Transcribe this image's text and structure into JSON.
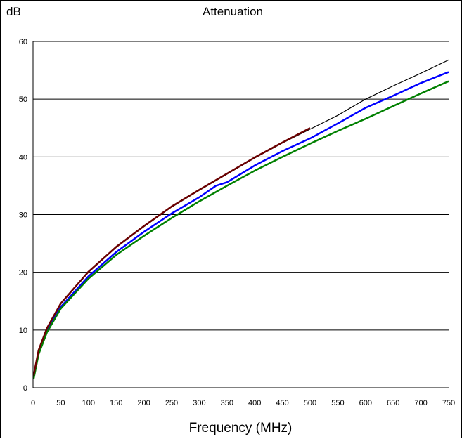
{
  "chart_data": {
    "type": "line",
    "title": "Attenuation",
    "xlabel": "Frequency (MHz)",
    "ylabel": "dB",
    "xlim": [
      0,
      750
    ],
    "ylim": [
      0,
      60
    ],
    "xticks": [
      0,
      50,
      100,
      150,
      200,
      250,
      300,
      350,
      400,
      450,
      500,
      550,
      600,
      650,
      700,
      750
    ],
    "yticks": [
      0,
      10,
      20,
      30,
      40,
      50,
      60
    ],
    "grid": "horizontal",
    "legend": "none",
    "series": [
      {
        "color": "#000000",
        "style": "thin",
        "x": [
          1,
          10,
          25,
          50,
          100,
          150,
          200,
          250,
          300,
          350,
          400,
          450,
          500,
          550,
          600,
          650,
          700,
          750
        ],
        "y": [
          2.0,
          6.4,
          10.2,
          14.5,
          20.0,
          24.3,
          27.9,
          31.3,
          34.2,
          37.0,
          39.8,
          42.4,
          44.8,
          47.2,
          50.0,
          52.3,
          54.5,
          56.8
        ]
      },
      {
        "color": "#0000ff",
        "style": "thick",
        "x": [
          1,
          10,
          25,
          50,
          100,
          150,
          200,
          250,
          300,
          330,
          350,
          400,
          450,
          500,
          550,
          600,
          650,
          700,
          750
        ],
        "y": [
          1.8,
          6.1,
          9.9,
          14.0,
          19.3,
          23.5,
          27.0,
          30.2,
          33.0,
          35.0,
          35.6,
          38.5,
          41.0,
          43.2,
          45.8,
          48.5,
          50.6,
          52.8,
          54.7
        ]
      },
      {
        "color": "#008000",
        "style": "thick",
        "x": [
          1,
          10,
          25,
          50,
          100,
          150,
          200,
          250,
          300,
          350,
          400,
          450,
          500,
          550,
          600,
          650,
          700,
          750
        ],
        "y": [
          1.5,
          5.8,
          9.6,
          13.7,
          18.9,
          23.0,
          26.3,
          29.4,
          32.3,
          35.0,
          37.6,
          40.0,
          42.3,
          44.5,
          46.6,
          48.8,
          51.0,
          53.1
        ]
      },
      {
        "color": "#6b0000",
        "style": "thick",
        "x": [
          1,
          10,
          25,
          50,
          100,
          150,
          200,
          250,
          300,
          350,
          400,
          450,
          500
        ],
        "y": [
          2.1,
          6.5,
          10.3,
          14.6,
          20.1,
          24.4,
          28.0,
          31.4,
          34.3,
          37.1,
          39.9,
          42.5,
          45.0
        ]
      }
    ]
  }
}
